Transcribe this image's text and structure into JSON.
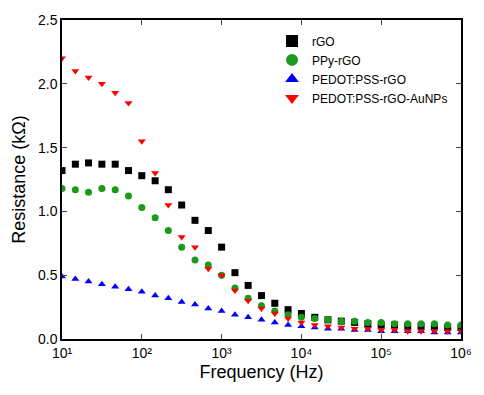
{
  "chart_data": {
    "type": "scatter",
    "x_label": "Frequency (Hz)",
    "y_label": "Resistance (kΩ)",
    "log": "x",
    "grid": false,
    "legend": "upper right",
    "x": [
      10,
      14.7,
      21.5,
      31.6,
      46.4,
      68.1,
      100,
      147,
      215,
      316,
      464,
      681,
      1000,
      1470,
      2150,
      3160,
      4640,
      6810,
      10000,
      14700,
      21500,
      31600,
      46400,
      68100,
      100000,
      147000,
      215000,
      316000,
      464000,
      681000,
      1000000
    ],
    "xlim": [
      10,
      1000000
    ],
    "xticks": [
      {
        "value": 10,
        "label": "10¹"
      },
      {
        "value": 100,
        "label": "10²"
      },
      {
        "value": 1000,
        "label": "10³"
      },
      {
        "value": 10000,
        "label": "10⁴"
      },
      {
        "value": 100000,
        "label": "10⁵"
      },
      {
        "value": 1000000,
        "label": "10⁶"
      }
    ],
    "ylim": [
      0,
      2.5
    ],
    "yticks": [
      {
        "value": 0,
        "label": "0.0"
      },
      0.5,
      {
        "value": 1,
        "label": "1.0"
      },
      1.5,
      {
        "value": 2,
        "label": "2.0"
      },
      2.5
    ],
    "series": [
      {
        "name": "rGO",
        "color": "#000000",
        "marker": "square",
        "values": [
          1.32,
          1.37,
          1.38,
          1.37,
          1.37,
          1.32,
          1.28,
          1.24,
          1.17,
          1.05,
          0.93,
          0.85,
          0.72,
          0.52,
          0.42,
          0.34,
          0.28,
          0.23,
          0.2,
          0.17,
          0.15,
          0.14,
          0.13,
          0.12,
          0.11,
          0.11,
          0.1,
          0.1,
          0.1,
          0.09,
          0.09
        ]
      },
      {
        "name": "PPy-rGO",
        "color": "#1a9a1a",
        "marker": "circle",
        "values": [
          1.18,
          1.17,
          1.15,
          1.18,
          1.17,
          1.12,
          1.03,
          0.95,
          0.85,
          0.72,
          0.62,
          0.58,
          0.5,
          0.4,
          0.32,
          0.26,
          0.22,
          0.19,
          0.17,
          0.16,
          0.15,
          0.14,
          0.14,
          0.13,
          0.13,
          0.12,
          0.12,
          0.12,
          0.12,
          0.11,
          0.11
        ]
      },
      {
        "name": "PEDOT:PSS-rGO",
        "color": "#0000ff",
        "marker": "triangle-up",
        "values": [
          0.49,
          0.47,
          0.45,
          0.43,
          0.41,
          0.39,
          0.37,
          0.34,
          0.32,
          0.29,
          0.27,
          0.24,
          0.22,
          0.19,
          0.17,
          0.15,
          0.13,
          0.11,
          0.1,
          0.09,
          0.08,
          0.08,
          0.07,
          0.07,
          0.06,
          0.06,
          0.06,
          0.06,
          0.05,
          0.05,
          0.05
        ]
      },
      {
        "name": "PEDOT:PSS-rGO-AuNPs",
        "color": "#ff0000",
        "marker": "triangle-down",
        "values": [
          2.2,
          2.1,
          2.05,
          2.0,
          1.93,
          1.85,
          1.55,
          1.3,
          1.05,
          0.8,
          0.72,
          0.55,
          0.5,
          0.38,
          0.3,
          0.24,
          0.2,
          0.16,
          0.13,
          0.11,
          0.1,
          0.09,
          0.08,
          0.08,
          0.07,
          0.07,
          0.06,
          0.06,
          0.06,
          0.06,
          0.06
        ]
      }
    ]
  }
}
